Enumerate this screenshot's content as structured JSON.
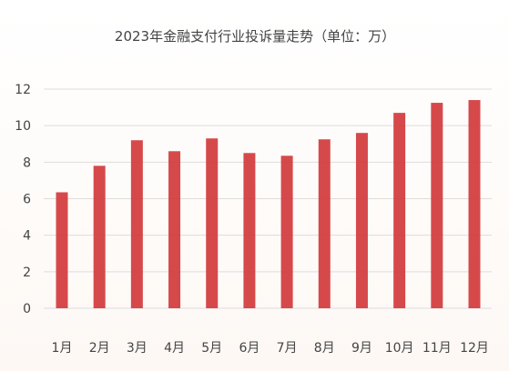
{
  "chart_data": {
    "type": "bar",
    "title": "2023年金融支付行业投诉量走势（单位：万）",
    "xlabel": "",
    "ylabel": "",
    "categories": [
      "1月",
      "2月",
      "3月",
      "4月",
      "5月",
      "6月",
      "7月",
      "8月",
      "9月",
      "10月",
      "11月",
      "12月"
    ],
    "values": [
      6.35,
      7.8,
      9.2,
      8.6,
      9.3,
      8.5,
      8.35,
      9.25,
      9.6,
      10.7,
      11.25,
      11.4
    ],
    "ylim": [
      0,
      12
    ],
    "yticks": [
      "0",
      "2",
      "4",
      "6",
      "8",
      "10",
      "12"
    ],
    "grid": true,
    "legend": "none",
    "bar_color": "#d2393c",
    "grid_color": "#dddddd",
    "text_color": "#444444"
  }
}
